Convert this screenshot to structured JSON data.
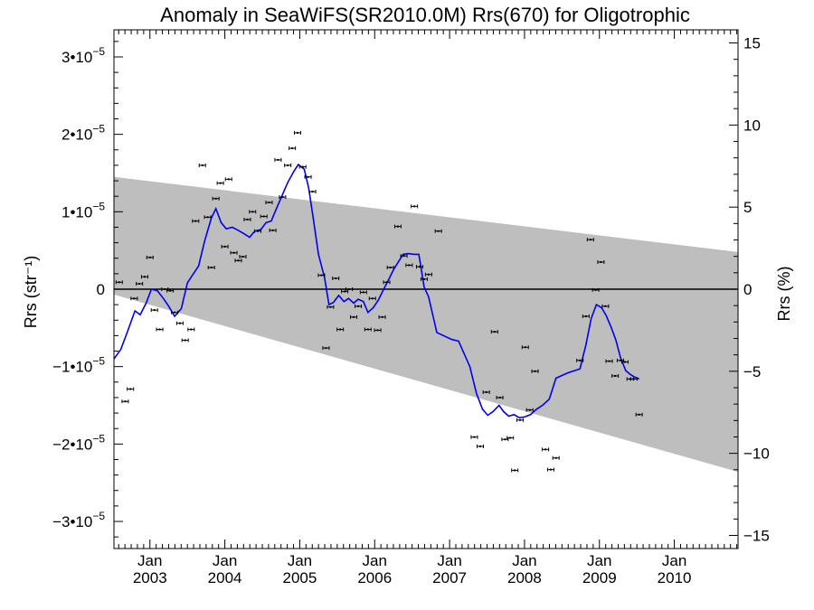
{
  "chart_data": {
    "type": "scatter",
    "title": "Anomaly in SeaWiFS(SR2010.0M) Rrs(670) for Oligotrophic",
    "ylabel_left": "Rrs (str⁻¹)",
    "ylabel_right": "Rrs (%)",
    "x_range": [
      2002.52,
      2010.85
    ],
    "ylim_left": [
      -3.35e-05,
      3.35e-05
    ],
    "ylim_right": [
      -15.8,
      15.8
    ],
    "yticks_left": [
      {
        "value": 3e-05,
        "mant": "3•10",
        "exp": "−5"
      },
      {
        "value": 2e-05,
        "mant": "2•10",
        "exp": "−5"
      },
      {
        "value": 1e-05,
        "mant": "1•10",
        "exp": "−5"
      },
      {
        "value": 0,
        "mant": "0",
        "exp": ""
      },
      {
        "value": -1e-05,
        "mant": "−1•10",
        "exp": "−5"
      },
      {
        "value": -2e-05,
        "mant": "−2•10",
        "exp": "−5"
      },
      {
        "value": -3e-05,
        "mant": "−3•10",
        "exp": "−5"
      }
    ],
    "yticks_right": [
      {
        "value": 15,
        "label": "15"
      },
      {
        "value": 10,
        "label": "10"
      },
      {
        "value": 5,
        "label": "5"
      },
      {
        "value": 0,
        "label": "0"
      },
      {
        "value": -5,
        "label": "−5"
      },
      {
        "value": -10,
        "label": "−10"
      },
      {
        "value": -15,
        "label": "−15"
      }
    ],
    "xticks": [
      {
        "value": 2003.0,
        "month": "Jan",
        "year": "2003"
      },
      {
        "value": 2004.0,
        "month": "Jan",
        "year": "2004"
      },
      {
        "value": 2005.0,
        "month": "Jan",
        "year": "2005"
      },
      {
        "value": 2006.0,
        "month": "Jan",
        "year": "2006"
      },
      {
        "value": 2007.0,
        "month": "Jan",
        "year": "2007"
      },
      {
        "value": 2008.0,
        "month": "Jan",
        "year": "2008"
      },
      {
        "value": 2009.0,
        "month": "Jan",
        "year": "2009"
      },
      {
        "value": 2010.0,
        "month": "Jan",
        "year": "2010"
      }
    ],
    "band": {
      "color": "#bebebe",
      "upper": [
        [
          2002.52,
          1.45e-05
        ],
        [
          2010.85,
          4.8e-06
        ]
      ],
      "lower": [
        [
          2002.52,
          -7e-07
        ],
        [
          2010.85,
          -2.36e-05
        ]
      ]
    },
    "series": [
      {
        "kind": "points",
        "color": "#000000",
        "values": [
          [
            2002.59,
            9e-07
          ],
          [
            2002.67,
            -1.45e-05
          ],
          [
            2002.74,
            -1.29e-05
          ],
          [
            2002.79,
            -1.2e-06
          ],
          [
            2002.86,
            7e-07
          ],
          [
            2002.93,
            1.6e-06
          ],
          [
            2003.0,
            4.1e-06
          ],
          [
            2003.06,
            -2.7e-06
          ],
          [
            2003.13,
            -5.2e-06
          ],
          [
            2003.2,
            0.0
          ],
          [
            2003.27,
            -2e-07
          ],
          [
            2003.33,
            -3e-06
          ],
          [
            2003.4,
            -4.4e-06
          ],
          [
            2003.47,
            -6.6e-06
          ],
          [
            2003.55,
            -5.2e-06
          ],
          [
            2003.61,
            8.8e-06
          ],
          [
            2003.7,
            1.6e-05
          ],
          [
            2003.77,
            9.3e-06
          ],
          [
            2003.82,
            2.8e-06
          ],
          [
            2003.88,
            1.17e-05
          ],
          [
            2003.94,
            1.37e-05
          ],
          [
            2004.0,
            5.5e-06
          ],
          [
            2004.05,
            1.42e-05
          ],
          [
            2004.12,
            4.7e-06
          ],
          [
            2004.18,
            3.7e-06
          ],
          [
            2004.24,
            4.2e-06
          ],
          [
            2004.3,
            9e-06
          ],
          [
            2004.37,
            1e-05
          ],
          [
            2004.44,
            7.5e-06
          ],
          [
            2004.52,
            9.4e-06
          ],
          [
            2004.59,
            1.12e-05
          ],
          [
            2004.64,
            7.6e-06
          ],
          [
            2004.71,
            1.67e-05
          ],
          [
            2004.77,
            1.19e-05
          ],
          [
            2004.84,
            1.6e-05
          ],
          [
            2004.9,
            1.82e-05
          ],
          [
            2004.97,
            2.02e-05
          ],
          [
            2005.04,
            1.58e-05
          ],
          [
            2005.11,
            1.45e-05
          ],
          [
            2005.17,
            1.26e-05
          ],
          [
            2005.29,
            1.8e-06
          ],
          [
            2005.35,
            -7.6e-06
          ],
          [
            2005.41,
            -2.3e-06
          ],
          [
            2005.48,
            1.4e-06
          ],
          [
            2005.54,
            -5.2e-06
          ],
          [
            2005.6,
            -3e-07
          ],
          [
            2005.66,
            0.0
          ],
          [
            2005.72,
            -3.6e-06
          ],
          [
            2005.78,
            -2.2e-06
          ],
          [
            2005.85,
            -4e-07
          ],
          [
            2005.91,
            -5.2e-06
          ],
          [
            2005.97,
            -1.2e-06
          ],
          [
            2006.04,
            -5.3e-06
          ],
          [
            2006.1,
            -3.6e-06
          ],
          [
            2006.16,
            9e-07
          ],
          [
            2006.21,
            2.8e-06
          ],
          [
            2006.31,
            8.1e-06
          ],
          [
            2006.39,
            4.3e-06
          ],
          [
            2006.46,
            3.1e-06
          ],
          [
            2006.53,
            1.07e-05
          ],
          [
            2006.6,
            2.9e-06
          ],
          [
            2006.66,
            1.3e-06
          ],
          [
            2006.72,
            1.9e-06
          ],
          [
            2006.85,
            7.5e-06
          ],
          [
            2007.33,
            -1.91e-05
          ],
          [
            2007.41,
            -2.03e-05
          ],
          [
            2007.49,
            -1.33e-05
          ],
          [
            2007.6,
            -5.5e-06
          ],
          [
            2007.67,
            -1.4e-05
          ],
          [
            2007.74,
            -1.94e-05
          ],
          [
            2007.81,
            -1.92e-05
          ],
          [
            2007.87,
            -2.34e-05
          ],
          [
            2007.94,
            -1.69e-05
          ],
          [
            2008.01,
            -7.5e-06
          ],
          [
            2008.07,
            -1.56e-05
          ],
          [
            2008.14,
            -1.06e-05
          ],
          [
            2008.28,
            -2.07e-05
          ],
          [
            2008.35,
            -2.33e-05
          ],
          [
            2008.42,
            -2.18e-05
          ],
          [
            2008.74,
            -9.2e-06
          ],
          [
            2008.82,
            -3.5e-06
          ],
          [
            2008.88,
            6.4e-06
          ],
          [
            2008.95,
            -1e-07
          ],
          [
            2009.02,
            3.5e-06
          ],
          [
            2009.08,
            -2.2e-06
          ],
          [
            2009.13,
            -9.3e-06
          ],
          [
            2009.21,
            -1.12e-05
          ],
          [
            2009.28,
            -9.2e-06
          ],
          [
            2009.34,
            -9.4e-06
          ],
          [
            2009.41,
            -1.16e-05
          ],
          [
            2009.46,
            -1.16e-05
          ],
          [
            2009.53,
            -1.62e-05
          ]
        ]
      },
      {
        "kind": "line",
        "color": "#0000ee",
        "values": [
          [
            2002.52,
            -9e-06
          ],
          [
            2002.61,
            -7.8e-06
          ],
          [
            2002.7,
            -5.5e-06
          ],
          [
            2002.8,
            -2.8e-06
          ],
          [
            2002.87,
            -3.3e-06
          ],
          [
            2002.95,
            -1.8e-06
          ],
          [
            2003.02,
            0.0
          ],
          [
            2003.1,
            -2e-07
          ],
          [
            2003.18,
            -1.2e-06
          ],
          [
            2003.25,
            -2.2e-06
          ],
          [
            2003.33,
            -3.5e-06
          ],
          [
            2003.42,
            -2.5e-06
          ],
          [
            2003.5,
            8e-07
          ],
          [
            2003.58,
            2e-06
          ],
          [
            2003.65,
            3e-06
          ],
          [
            2003.73,
            6.2e-06
          ],
          [
            2003.82,
            9.2e-06
          ],
          [
            2003.88,
            1.04e-05
          ],
          [
            2003.95,
            8.6e-06
          ],
          [
            2004.02,
            7.8e-06
          ],
          [
            2004.1,
            8e-06
          ],
          [
            2004.18,
            7.6e-06
          ],
          [
            2004.25,
            7.2e-06
          ],
          [
            2004.33,
            6.7e-06
          ],
          [
            2004.4,
            7.5e-06
          ],
          [
            2004.48,
            7.7e-06
          ],
          [
            2004.55,
            8.6e-06
          ],
          [
            2004.62,
            8.8e-06
          ],
          [
            2004.68,
            1.02e-05
          ],
          [
            2004.76,
            1.2e-05
          ],
          [
            2004.84,
            1.38e-05
          ],
          [
            2004.92,
            1.52e-05
          ],
          [
            2004.98,
            1.61e-05
          ],
          [
            2005.06,
            1.55e-05
          ],
          [
            2005.12,
            1.3e-05
          ],
          [
            2005.18,
            9.2e-06
          ],
          [
            2005.25,
            4.5e-06
          ],
          [
            2005.33,
            1.5e-06
          ],
          [
            2005.39,
            -2e-06
          ],
          [
            2005.45,
            -1.7e-06
          ],
          [
            2005.52,
            -8e-07
          ],
          [
            2005.59,
            -1.6e-06
          ],
          [
            2005.65,
            -1.2e-06
          ],
          [
            2005.72,
            -1.8e-06
          ],
          [
            2005.78,
            -1.3e-06
          ],
          [
            2005.85,
            -1.6e-06
          ],
          [
            2005.91,
            -3e-06
          ],
          [
            2005.98,
            -2.4e-06
          ],
          [
            2006.05,
            -1.4e-06
          ],
          [
            2006.12,
            0.0
          ],
          [
            2006.19,
            1.3e-06
          ],
          [
            2006.25,
            2.5e-06
          ],
          [
            2006.32,
            3.6e-06
          ],
          [
            2006.38,
            4.5e-06
          ],
          [
            2006.45,
            4.6e-06
          ],
          [
            2006.52,
            4.5e-06
          ],
          [
            2006.59,
            4.5e-06
          ],
          [
            2006.66,
            3e-07
          ],
          [
            2006.72,
            -1e-06
          ],
          [
            2006.83,
            -5.6e-06
          ],
          [
            2007.03,
            -6.5e-06
          ],
          [
            2007.12,
            -6.7e-06
          ],
          [
            2007.27,
            -1e-05
          ],
          [
            2007.36,
            -1.35e-05
          ],
          [
            2007.44,
            -1.55e-05
          ],
          [
            2007.51,
            -1.63e-05
          ],
          [
            2007.58,
            -1.58e-05
          ],
          [
            2007.66,
            -1.5e-05
          ],
          [
            2007.72,
            -1.58e-05
          ],
          [
            2007.79,
            -1.64e-05
          ],
          [
            2007.86,
            -1.62e-05
          ],
          [
            2007.93,
            -1.66e-05
          ],
          [
            2008.0,
            -1.65e-05
          ],
          [
            2008.08,
            -1.62e-05
          ],
          [
            2008.16,
            -1.55e-05
          ],
          [
            2008.24,
            -1.5e-05
          ],
          [
            2008.33,
            -1.42e-05
          ],
          [
            2008.42,
            -1.15e-05
          ],
          [
            2008.58,
            -1.08e-05
          ],
          [
            2008.74,
            -1.03e-05
          ],
          [
            2008.82,
            -7.2e-06
          ],
          [
            2008.89,
            -3.8e-06
          ],
          [
            2008.96,
            -2e-06
          ],
          [
            2009.03,
            -2.4e-06
          ],
          [
            2009.09,
            -3.4e-06
          ],
          [
            2009.16,
            -5e-06
          ],
          [
            2009.22,
            -6.6e-06
          ],
          [
            2009.28,
            -8.8e-06
          ],
          [
            2009.35,
            -1.05e-05
          ],
          [
            2009.41,
            -1.1e-05
          ],
          [
            2009.46,
            -1.13e-05
          ],
          [
            2009.53,
            -1.16e-05
          ]
        ]
      }
    ],
    "grid": false
  }
}
